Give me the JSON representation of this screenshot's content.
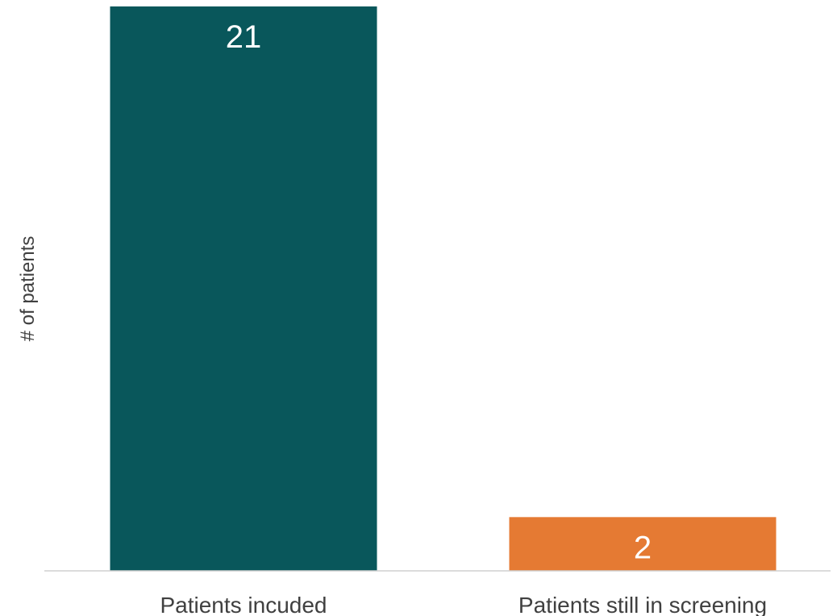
{
  "chart_data": {
    "type": "bar",
    "categories": [
      "Patients incuded",
      "Patients still in screening"
    ],
    "values": [
      21,
      2
    ],
    "data_labels": [
      "21",
      "2"
    ],
    "colors": [
      "#09575b",
      "#e57a33"
    ],
    "title": "",
    "xlabel": "",
    "ylabel": "# of patients",
    "ylim": [
      0,
      21
    ],
    "grid": false,
    "legend": "none"
  }
}
